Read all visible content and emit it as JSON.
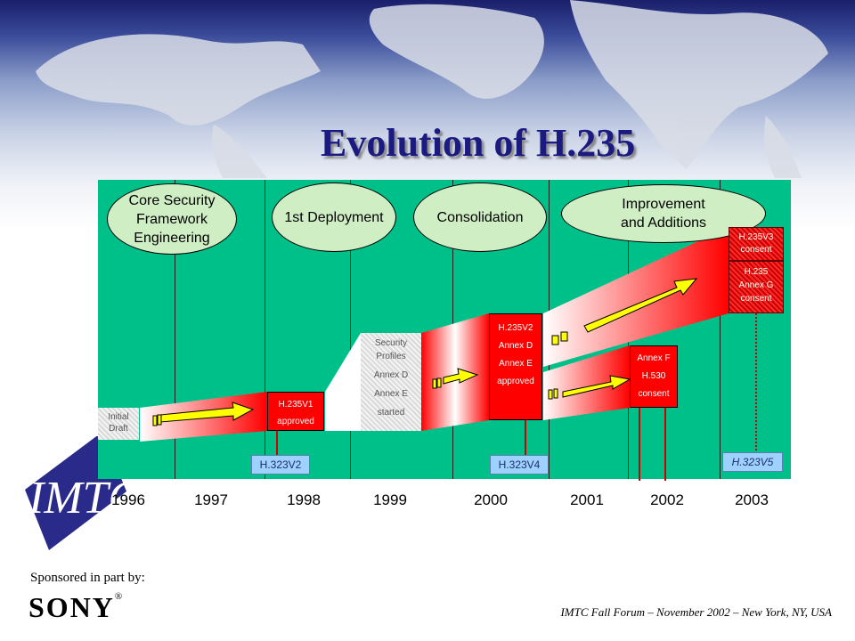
{
  "title": "Evolution of H.235",
  "phases": [
    "Core Security Framework Engineering",
    "1st Deployment",
    "Consolidation",
    "Improvement and Additions"
  ],
  "phase_lines": {
    "core": [
      "Core Security",
      "Framework",
      "Engineering"
    ],
    "improve": [
      "Improvement",
      "and Additions"
    ]
  },
  "milestones": {
    "initial_draft": [
      "Initial",
      "Draft"
    ],
    "h235v1": [
      "H.235V1",
      "approved"
    ],
    "security_profiles": [
      "Security",
      "Profiles",
      "Annex D",
      "Annex E",
      "started"
    ],
    "h235v2": [
      "H.235V2",
      "Annex D",
      "Annex E",
      "approved"
    ],
    "annex_f": [
      "Annex F",
      "H.530",
      "consent"
    ],
    "h235v3": [
      "H.235V3",
      "consent"
    ],
    "annex_g": [
      "H.235",
      "Annex G",
      "consent"
    ]
  },
  "versions": [
    "H.323V2",
    "H.323V4",
    "H.323V5"
  ],
  "years": [
    "1996",
    "1997",
    "1998",
    "1999",
    "2000",
    "2001",
    "2002",
    "2003"
  ],
  "logo_text": "IMTC",
  "sponsor_label": "Sponsored in part by:",
  "sponsor_name": "SONY",
  "footer": "IMTC Fall Forum – November 2002 – New York, NY, USA",
  "colors": {
    "panel": "#00c08a",
    "title": "#1a1a80",
    "arrow": "#ffff00",
    "milestone": "#ff0000",
    "version_label": "#9fd1ff"
  }
}
